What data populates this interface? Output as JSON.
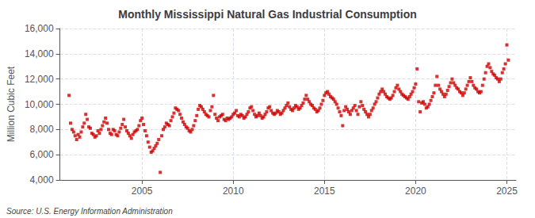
{
  "chart_data": {
    "type": "scatter",
    "title": "Monthly Mississippi Natural Gas Industrial Consumption",
    "ylabel": "Million Cubic Feet",
    "annotations": [
      "Source: U.S. Energy Information Administration"
    ],
    "color": "#cc0000",
    "marker": "square",
    "grid": true,
    "xlim": [
      2000.5,
      2025.5
    ],
    "xticks": [
      2005,
      2010,
      2015,
      2020,
      2025
    ],
    "ylim": [
      4000,
      16000
    ],
    "yticks": [
      {
        "value": 4000,
        "label": "4,000"
      },
      {
        "value": 6000,
        "label": "6,000"
      },
      {
        "value": 8000,
        "label": "8,000"
      },
      {
        "value": 10000,
        "label": "10,000"
      },
      {
        "value": 12000,
        "label": "12,000"
      },
      {
        "value": 14000,
        "label": "14,000"
      },
      {
        "value": 16000,
        "label": "16,000"
      }
    ],
    "x": [
      2001.0,
      2001.083,
      2001.167,
      2001.25,
      2001.333,
      2001.417,
      2001.5,
      2001.583,
      2001.667,
      2001.75,
      2001.833,
      2001.917,
      2002.0,
      2002.083,
      2002.167,
      2002.25,
      2002.333,
      2002.417,
      2002.5,
      2002.583,
      2002.667,
      2002.75,
      2002.833,
      2002.917,
      2003.0,
      2003.083,
      2003.167,
      2003.25,
      2003.333,
      2003.417,
      2003.5,
      2003.583,
      2003.667,
      2003.75,
      2003.833,
      2003.917,
      2004.0,
      2004.083,
      2004.167,
      2004.25,
      2004.333,
      2004.417,
      2004.5,
      2004.583,
      2004.667,
      2004.75,
      2004.833,
      2004.917,
      2005.0,
      2005.083,
      2005.167,
      2005.25,
      2005.333,
      2005.417,
      2005.5,
      2005.583,
      2005.667,
      2005.75,
      2005.833,
      2005.917,
      2006.0,
      2006.083,
      2006.167,
      2006.25,
      2006.333,
      2006.417,
      2006.5,
      2006.583,
      2006.667,
      2006.75,
      2006.833,
      2006.917,
      2007.0,
      2007.083,
      2007.167,
      2007.25,
      2007.333,
      2007.417,
      2007.5,
      2007.583,
      2007.667,
      2007.75,
      2007.833,
      2007.917,
      2008.0,
      2008.083,
      2008.167,
      2008.25,
      2008.333,
      2008.417,
      2008.5,
      2008.583,
      2008.667,
      2008.75,
      2008.833,
      2008.917,
      2009.0,
      2009.083,
      2009.167,
      2009.25,
      2009.333,
      2009.417,
      2009.5,
      2009.583,
      2009.667,
      2009.75,
      2009.833,
      2009.917,
      2010.0,
      2010.083,
      2010.167,
      2010.25,
      2010.333,
      2010.417,
      2010.5,
      2010.583,
      2010.667,
      2010.75,
      2010.833,
      2010.917,
      2011.0,
      2011.083,
      2011.167,
      2011.25,
      2011.333,
      2011.417,
      2011.5,
      2011.583,
      2011.667,
      2011.75,
      2011.833,
      2011.917,
      2012.0,
      2012.083,
      2012.167,
      2012.25,
      2012.333,
      2012.417,
      2012.5,
      2012.583,
      2012.667,
      2012.75,
      2012.833,
      2012.917,
      2013.0,
      2013.083,
      2013.167,
      2013.25,
      2013.333,
      2013.417,
      2013.5,
      2013.583,
      2013.667,
      2013.75,
      2013.833,
      2013.917,
      2014.0,
      2014.083,
      2014.167,
      2014.25,
      2014.333,
      2014.417,
      2014.5,
      2014.583,
      2014.667,
      2014.75,
      2014.833,
      2014.917,
      2015.0,
      2015.083,
      2015.167,
      2015.25,
      2015.333,
      2015.417,
      2015.5,
      2015.583,
      2015.667,
      2015.75,
      2015.833,
      2015.917,
      2016.0,
      2016.083,
      2016.167,
      2016.25,
      2016.333,
      2016.417,
      2016.5,
      2016.583,
      2016.667,
      2016.75,
      2016.833,
      2016.917,
      2017.0,
      2017.083,
      2017.167,
      2017.25,
      2017.333,
      2017.417,
      2017.5,
      2017.583,
      2017.667,
      2017.75,
      2017.833,
      2017.917,
      2018.0,
      2018.083,
      2018.167,
      2018.25,
      2018.333,
      2018.417,
      2018.5,
      2018.583,
      2018.667,
      2018.75,
      2018.833,
      2018.917,
      2019.0,
      2019.083,
      2019.167,
      2019.25,
      2019.333,
      2019.417,
      2019.5,
      2019.583,
      2019.667,
      2019.75,
      2019.833,
      2019.917,
      2020.0,
      2020.083,
      2020.167,
      2020.25,
      2020.333,
      2020.417,
      2020.5,
      2020.583,
      2020.667,
      2020.75,
      2020.833,
      2020.917,
      2021.0,
      2021.083,
      2021.167,
      2021.25,
      2021.333,
      2021.417,
      2021.5,
      2021.583,
      2021.667,
      2021.75,
      2021.833,
      2021.917,
      2022.0,
      2022.083,
      2022.167,
      2022.25,
      2022.333,
      2022.417,
      2022.5,
      2022.583,
      2022.667,
      2022.75,
      2022.833,
      2022.917,
      2023.0,
      2023.083,
      2023.167,
      2023.25,
      2023.333,
      2023.417,
      2023.5,
      2023.583,
      2023.667,
      2023.75,
      2023.833,
      2023.917,
      2024.0,
      2024.083,
      2024.167,
      2024.25,
      2024.333,
      2024.417,
      2024.5,
      2024.583,
      2024.667,
      2024.75,
      2024.833,
      2024.917,
      2025.0,
      2025.083
    ],
    "values": [
      10700,
      8500,
      8000,
      7800,
      7500,
      7200,
      7600,
      7400,
      7800,
      8200,
      8500,
      9200,
      8800,
      8200,
      8100,
      7700,
      7600,
      7400,
      7500,
      7900,
      7700,
      8000,
      8300,
      8600,
      8900,
      8500,
      8000,
      7700,
      7600,
      8000,
      7900,
      7600,
      7500,
      7800,
      8100,
      8400,
      8800,
      8200,
      7900,
      7700,
      7500,
      7300,
      7600,
      7800,
      7900,
      8000,
      8300,
      8700,
      8900,
      8400,
      7900,
      7500,
      7000,
      6600,
      6200,
      6300,
      6500,
      6700,
      6900,
      7200,
      4600,
      7500,
      8000,
      8200,
      8500,
      8400,
      8300,
      8700,
      9000,
      9300,
      9700,
      9600,
      9500,
      9200,
      8900,
      8600,
      8400,
      8200,
      8100,
      7900,
      7800,
      8000,
      8300,
      8700,
      9100,
      9600,
      9900,
      9800,
      9600,
      9400,
      9200,
      9100,
      9000,
      9500,
      9800,
      10700,
      9200,
      8900,
      8700,
      9000,
      9100,
      9200,
      8800,
      8700,
      8900,
      8800,
      8900,
      9000,
      9200,
      9300,
      9500,
      9100,
      9000,
      9200,
      9100,
      8900,
      9000,
      9200,
      9400,
      9700,
      9800,
      9500,
      9200,
      9000,
      9100,
      9300,
      9100,
      8900,
      9000,
      9200,
      9400,
      9700,
      9800,
      9500,
      9300,
      9200,
      9300,
      9500,
      9400,
      9200,
      9300,
      9500,
      9700,
      9900,
      10100,
      9800,
      9600,
      9500,
      9700,
      9900,
      9800,
      9600,
      9700,
      9900,
      10100,
      10400,
      10700,
      10400,
      10200,
      10000,
      9900,
      9700,
      9600,
      9400,
      9500,
      9700,
      10000,
      10300,
      10700,
      10900,
      11000,
      10800,
      10600,
      10500,
      10400,
      10200,
      10000,
      9700,
      9400,
      9100,
      8300,
      9500,
      9800,
      9600,
      9400,
      9200,
      9500,
      9700,
      9900,
      9500,
      9200,
      9800,
      10200,
      9900,
      9600,
      9400,
      9200,
      9000,
      9200,
      9500,
      9700,
      10000,
      10200,
      10500,
      10800,
      11000,
      11200,
      11000,
      10800,
      10600,
      10500,
      10400,
      10500,
      10700,
      11000,
      11300,
      11500,
      11200,
      11000,
      10800,
      10700,
      10600,
      10500,
      10400,
      10600,
      10800,
      11000,
      11300,
      11600,
      12800,
      10200,
      9400,
      10100,
      10200,
      10000,
      9700,
      9800,
      10000,
      10300,
      10600,
      10900,
      11500,
      12200,
      11500,
      11200,
      11000,
      10800,
      10600,
      10800,
      11100,
      11400,
      11700,
      12000,
      11700,
      11500,
      11300,
      11200,
      11000,
      10900,
      10700,
      10900,
      11200,
      11500,
      11800,
      12100,
      11800,
      11500,
      11300,
      11200,
      11000,
      10900,
      11000,
      11500,
      12000,
      12500,
      13000,
      13200,
      12900,
      12600,
      12400,
      12300,
      12100,
      12000,
      11800,
      12000,
      12500,
      12800,
      13200,
      14700,
      13500
    ]
  }
}
